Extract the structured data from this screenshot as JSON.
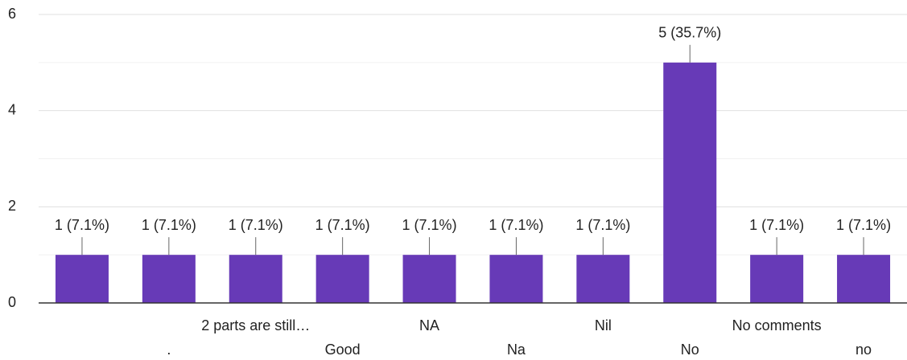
{
  "chart_data": {
    "type": "bar",
    "categories": [
      null,
      ".",
      "2 parts are still…",
      "Good",
      "NA",
      "Na",
      "Nil",
      "No",
      "No comments",
      "no"
    ],
    "values": [
      1,
      1,
      1,
      1,
      1,
      1,
      1,
      5,
      1,
      1
    ],
    "value_labels": [
      "1 (7.1%)",
      "1 (7.1%)",
      "1 (7.1%)",
      "1 (7.1%)",
      "1 (7.1%)",
      "1 (7.1%)",
      "1 (7.1%)",
      "5 (35.7%)",
      "1 (7.1%)",
      "1 (7.1%)"
    ],
    "color": "#673ab7",
    "ylim": [
      0,
      6
    ],
    "yticks": [
      0,
      2,
      4,
      6
    ],
    "minor_yticks": [
      1,
      3,
      5
    ],
    "grid": true
  }
}
